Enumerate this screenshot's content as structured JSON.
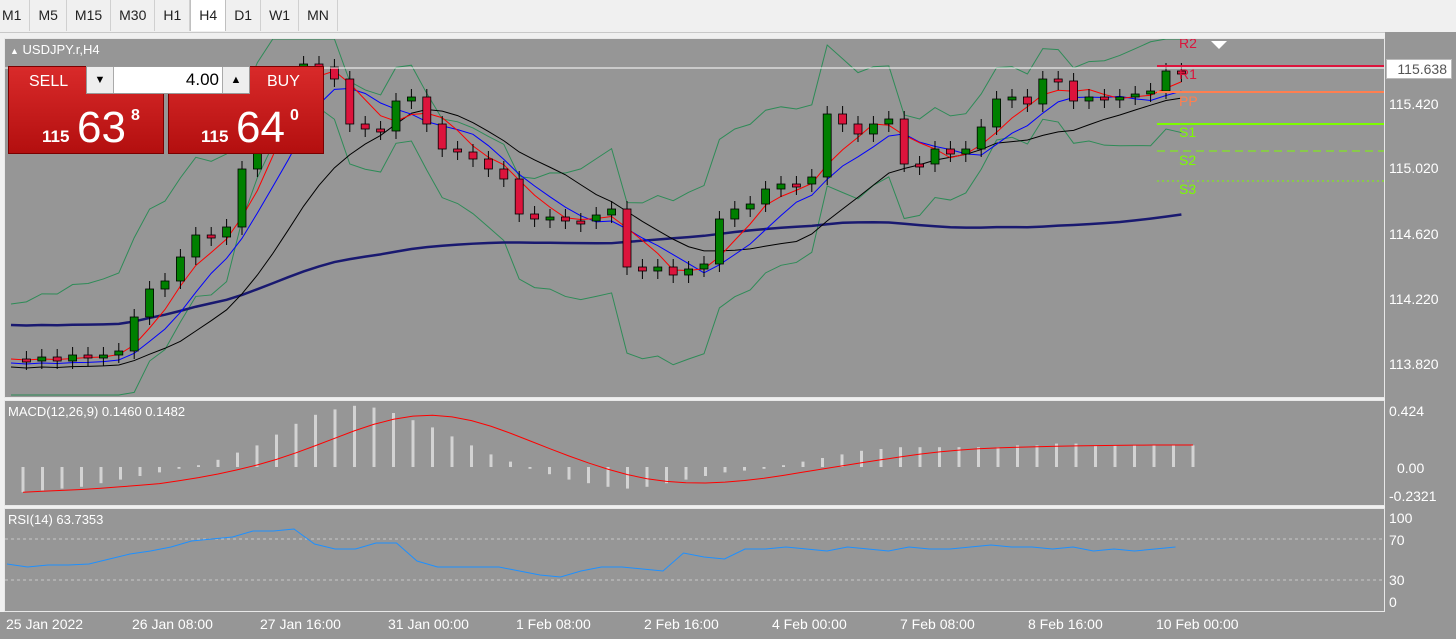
{
  "timeframes": [
    "M1",
    "M5",
    "M15",
    "M30",
    "H1",
    "H4",
    "D1",
    "W1",
    "MN"
  ],
  "active_timeframe": "H4",
  "chart": {
    "symbol_title": "USDJPY.r,H4",
    "price_scale": [
      "115.420",
      "115.020",
      "114.620",
      "114.220",
      "113.820"
    ],
    "current_price": "115.638",
    "pivot_labels": [
      "R2",
      "R1",
      "PP",
      "S1",
      "S2",
      "S3"
    ],
    "colors": {
      "bull": "#008000",
      "bear": "#dc143c",
      "background": "#969696",
      "ma_fast": "#0000ff",
      "ma_mid": "#ff0000",
      "ma_slow": "#000000",
      "ma_trend": "#191970",
      "bands": "#2e8b57"
    }
  },
  "trade_panel": {
    "sell_label": "SELL",
    "buy_label": "BUY",
    "lot_value": "4.00",
    "sell_price": {
      "prefix": "115",
      "big": "63",
      "sup": "8"
    },
    "buy_price": {
      "prefix": "115",
      "big": "64",
      "sup": "0"
    }
  },
  "macd": {
    "title": "MACD(12,26,9) 0.1460 0.1482",
    "scale": [
      "0.424",
      "0.00",
      "-0.2321"
    ]
  },
  "rsi": {
    "title": "RSI(14) 63.7353",
    "scale": [
      "100",
      "70",
      "30",
      "0"
    ]
  },
  "x_axis": [
    "25 Jan 2022",
    "26 Jan 08:00",
    "27 Jan 16:00",
    "31 Jan 00:00",
    "1 Feb 08:00",
    "2 Feb 16:00",
    "4 Feb 00:00",
    "7 Feb 08:00",
    "8 Feb 16:00",
    "10 Feb 00:00"
  ]
}
